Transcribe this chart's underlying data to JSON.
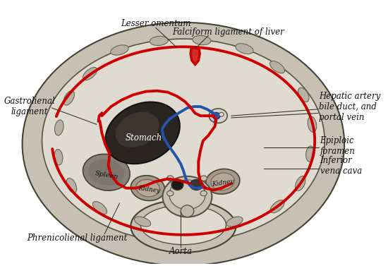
{
  "bg_color": "#ffffff",
  "labels": {
    "lesser_omentum": "Lesser omentum",
    "falciform": "Falciform ligament of liver",
    "gastrolienal": "Gastrolienal\nligament",
    "hepatic": "Hepatic artery\nbile duct, and\nportal vein",
    "epiploic": "Epiploic\nforamen",
    "inferior_vena": "Inferior\nvena cava",
    "phrenicolienal": "Phrenicolienal ligament",
    "aorta": "Aorta",
    "stomach": "Stomach",
    "spleen": "Spleen",
    "kidney_l": "Kidney",
    "kidney_r": "Kidney"
  },
  "red_color": "#cc0000",
  "blue_color": "#2255aa",
  "text_color": "#111111",
  "body_wall_fc": "#c8c0b4",
  "body_inner_fc": "#d8d2c8",
  "cavity_fc": "#e0dbd0",
  "organ_dark": "#3a3530",
  "organ_mid": "#8a8278",
  "organ_light": "#b8b0a4",
  "rib_fc": "#b8b0a4",
  "rib_ec": "#666655"
}
